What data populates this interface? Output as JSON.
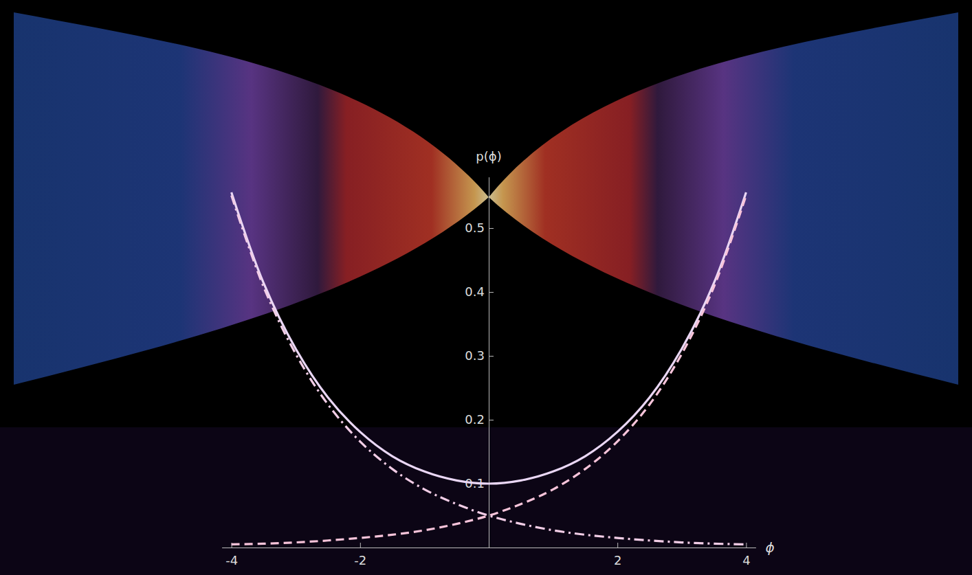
{
  "chart_data": {
    "type": "line",
    "x_label": "ϕ",
    "y_label": "p(ϕ)",
    "x": [
      -4,
      -3.5,
      -3,
      -2.5,
      -2,
      -1.5,
      -1,
      -0.5,
      0,
      0.5,
      1,
      1.5,
      2,
      2.5,
      3,
      3.5,
      4
    ],
    "series": [
      {
        "color": "#ead7f5",
        "line_style": "solid",
        "values": [
          0.556,
          0.414,
          0.311,
          0.235,
          0.181,
          0.143,
          0.119,
          0.105,
          0.1,
          0.105,
          0.119,
          0.143,
          0.181,
          0.235,
          0.311,
          0.414,
          0.556
        ]
      },
      {
        "color": "#f8c4da",
        "line_style": "dashed",
        "values": [
          0.005,
          0.006,
          0.008,
          0.011,
          0.015,
          0.02,
          0.027,
          0.037,
          0.05,
          0.068,
          0.091,
          0.123,
          0.166,
          0.224,
          0.303,
          0.408,
          0.551
        ]
      },
      {
        "color": "#f2cde6",
        "line_style": "dashdot",
        "values": [
          0.551,
          0.408,
          0.303,
          0.224,
          0.166,
          0.123,
          0.091,
          0.068,
          0.05,
          0.037,
          0.027,
          0.02,
          0.015,
          0.011,
          0.008,
          0.006,
          0.005
        ]
      }
    ],
    "xlim": [
      -4.15,
      4.15
    ],
    "ylim": [
      0,
      0.58
    ],
    "xticks": [
      -4,
      -2,
      2,
      4
    ],
    "yticks": [
      0.1,
      0.2,
      0.3,
      0.4,
      0.5
    ],
    "grid": false
  }
}
